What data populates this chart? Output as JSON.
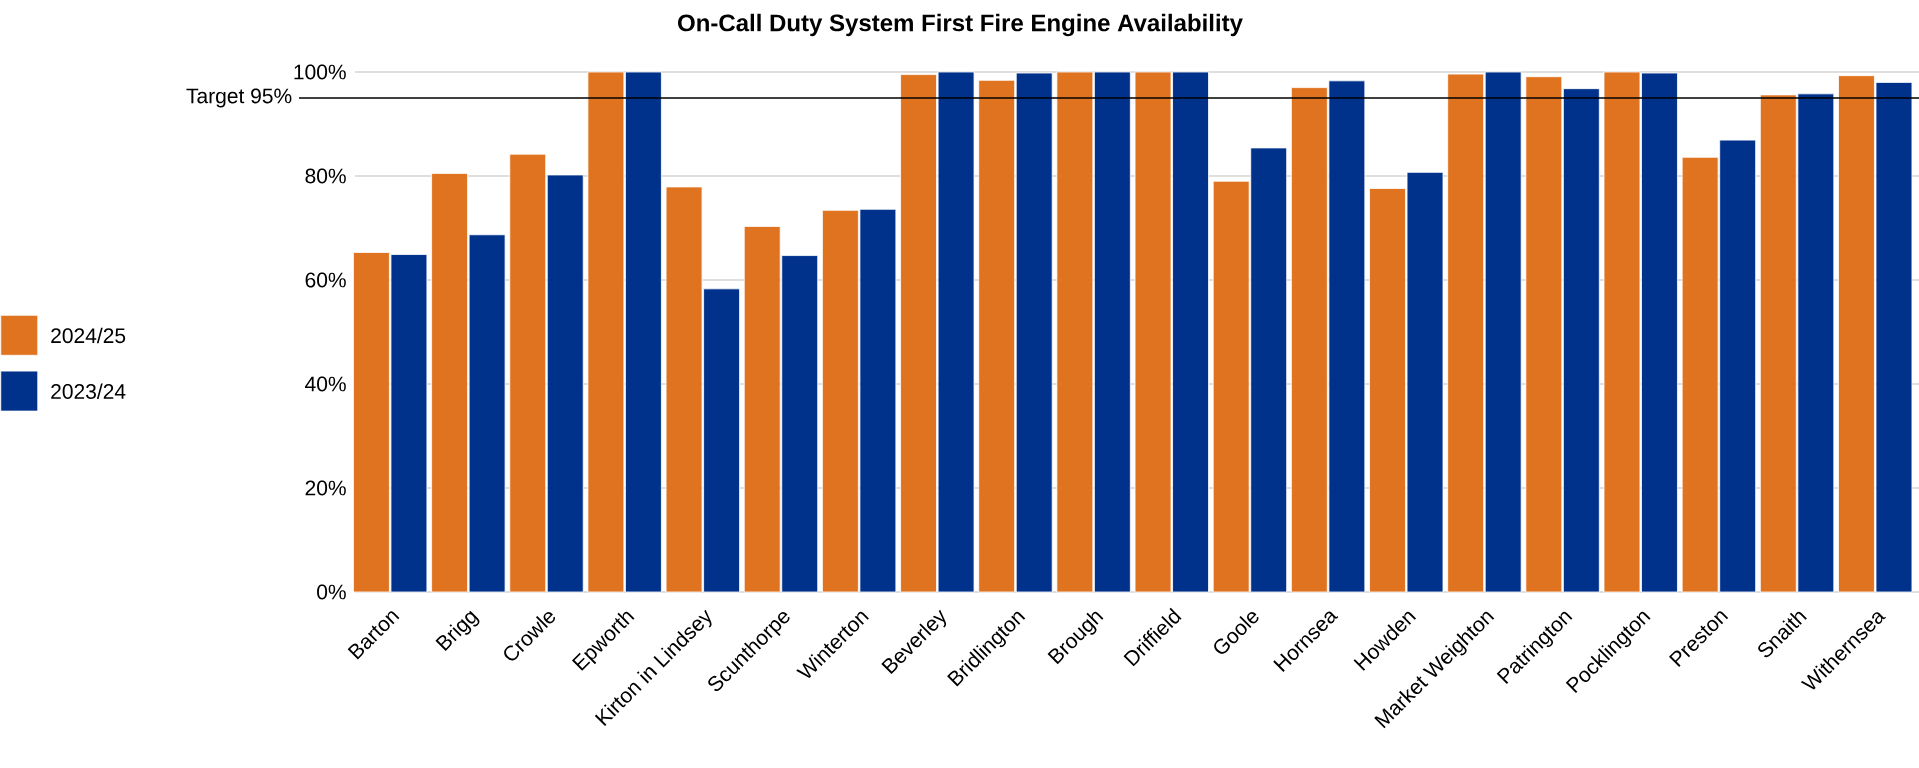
{
  "chart_data": {
    "type": "bar",
    "title": "On-Call Duty System First Fire Engine Availability",
    "categories": [
      "Barton",
      "Brigg",
      "Crowle",
      "Epworth",
      "Kirton in Lindsey",
      "Scunthorpe",
      "Winterton",
      "Beverley",
      "Bridlington",
      "Brough",
      "Driffield",
      "Goole",
      "Hornsea",
      "Howden",
      "Market Weighton",
      "Patrington",
      "Pocklington",
      "Preston",
      "Snaith",
      "Withernsea"
    ],
    "series": [
      {
        "name": "2024/25",
        "color": "#e07320",
        "values": [
          65.3,
          80.5,
          84.2,
          100,
          77.9,
          70.3,
          73.4,
          99.5,
          98.4,
          100,
          100,
          79.0,
          97.0,
          77.6,
          99.6,
          99.1,
          100,
          83.6,
          95.6,
          99.3
        ]
      },
      {
        "name": "2023/24",
        "color": "#00328c",
        "values": [
          64.9,
          68.7,
          80.2,
          100,
          58.3,
          64.7,
          73.6,
          100,
          99.8,
          100,
          100,
          85.4,
          98.3,
          80.7,
          100,
          96.8,
          99.8,
          86.9,
          95.8,
          98.0
        ]
      }
    ],
    "ylim": [
      0,
      100
    ],
    "yticks": [
      {
        "value": 0,
        "label": "0%"
      },
      {
        "value": 20,
        "label": "20%"
      },
      {
        "value": 40,
        "label": "40%"
      },
      {
        "value": 60,
        "label": "60%"
      },
      {
        "value": 80,
        "label": "80%"
      },
      {
        "value": 100,
        "label": "100%"
      }
    ],
    "ref_lines": [
      {
        "axis": "y",
        "value": 95,
        "label": "Target 95%",
        "color": "#000000"
      }
    ],
    "grid": "y",
    "legend": "left"
  }
}
